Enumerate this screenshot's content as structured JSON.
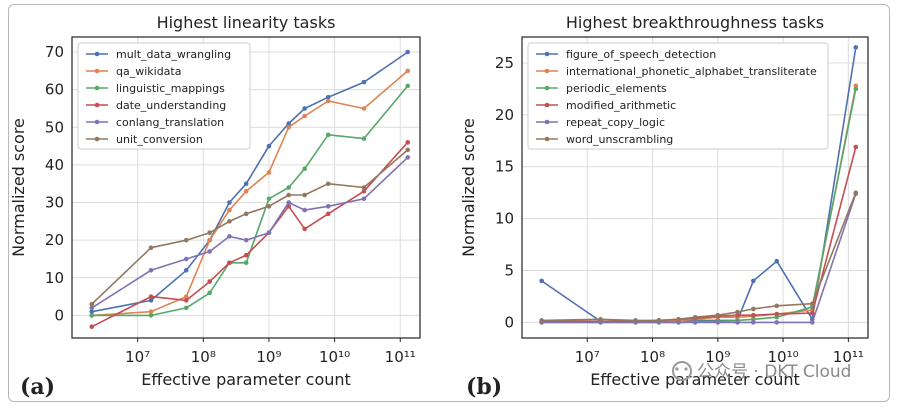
{
  "chart_data": [
    {
      "type": "line",
      "panel_label": "(a)",
      "title": "Highest linearity tasks",
      "xlabel": "Effective parameter count",
      "ylabel": "Normalized score",
      "xscale": "log",
      "xlim": [
        1000000,
        200000000000
      ],
      "ylim": [
        -6,
        74
      ],
      "xticks": [
        7,
        8,
        9,
        10,
        11
      ],
      "yticks": [
        0,
        10,
        20,
        30,
        40,
        50,
        60,
        70
      ],
      "legend_position": "top-left",
      "grid": true,
      "x": [
        2000000,
        16000000,
        55000000,
        125000000,
        250000000,
        450000000,
        1000000000,
        2000000000,
        3500000000,
        8000000000,
        28000000000,
        130000000000
      ],
      "series": [
        {
          "name": "mult_data_wrangling",
          "color": "#4c72b0",
          "values": [
            1,
            4,
            12,
            20,
            30,
            35,
            45,
            51,
            55,
            58,
            62,
            70
          ]
        },
        {
          "name": "qa_wikidata",
          "color": "#dd8452",
          "values": [
            0,
            1,
            5,
            20,
            28,
            33,
            38,
            50,
            53,
            57,
            55,
            65
          ]
        },
        {
          "name": "linguistic_mappings",
          "color": "#55a868",
          "values": [
            0,
            0,
            2,
            6,
            14,
            14,
            31,
            34,
            39,
            48,
            47,
            61
          ]
        },
        {
          "name": "date_understanding",
          "color": "#c44e52",
          "values": [
            -3,
            5,
            4,
            9,
            14,
            16,
            22,
            29,
            23,
            27,
            33,
            46
          ]
        },
        {
          "name": "conlang_translation",
          "color": "#8172b3",
          "values": [
            2,
            12,
            15,
            17,
            21,
            20,
            22,
            30,
            28,
            29,
            31,
            42
          ]
        },
        {
          "name": "unit_conversion",
          "color": "#937860",
          "values": [
            3,
            18,
            20,
            22,
            25,
            27,
            29,
            32,
            32,
            35,
            34,
            44
          ]
        }
      ]
    },
    {
      "type": "line",
      "panel_label": "(b)",
      "title": "Highest breakthroughness tasks",
      "xlabel": "Effective parameter count",
      "ylabel": "Normalized score",
      "xscale": "log",
      "xlim": [
        1000000,
        200000000000
      ],
      "ylim": [
        -1.5,
        27.5
      ],
      "xticks": [
        7,
        8,
        9,
        10,
        11
      ],
      "yticks": [
        0,
        5,
        10,
        15,
        20,
        25
      ],
      "legend_position": "top-left",
      "grid": true,
      "x": [
        2000000,
        16000000,
        55000000,
        125000000,
        250000000,
        450000000,
        1000000000,
        2000000000,
        3500000000,
        8000000000,
        28000000000,
        130000000000
      ],
      "series": [
        {
          "name": "figure_of_speech_detection",
          "color": "#4c72b0",
          "values": [
            4,
            0.1,
            0.1,
            0.1,
            0.2,
            0.2,
            0.2,
            0.2,
            4,
            5.9,
            0.3,
            26.5
          ]
        },
        {
          "name": "international_phonetic_alphabet_transliterate",
          "color": "#dd8452",
          "values": [
            0.1,
            0.1,
            0.1,
            0.2,
            0.2,
            0.3,
            0.5,
            0.5,
            0.6,
            0.8,
            1.2,
            22.8
          ]
        },
        {
          "name": "periodic_elements",
          "color": "#55a868",
          "values": [
            0,
            0,
            0,
            0,
            0,
            0.1,
            0.1,
            0.2,
            0.3,
            0.5,
            1.5,
            22.5
          ]
        },
        {
          "name": "modified_arithmetic",
          "color": "#c44e52",
          "values": [
            0.1,
            0.1,
            0.1,
            0.2,
            0.3,
            0.4,
            0.6,
            0.7,
            0.7,
            0.8,
            0.9,
            16.9
          ]
        },
        {
          "name": "repeat_copy_logic",
          "color": "#8172b3",
          "values": [
            0,
            0,
            0,
            0,
            0,
            0,
            0,
            0,
            0,
            0,
            0,
            12.4
          ]
        },
        {
          "name": "word_unscrambling",
          "color": "#937860",
          "values": [
            0.2,
            0.3,
            0.2,
            0.2,
            0.3,
            0.5,
            0.7,
            1.0,
            1.3,
            1.6,
            1.8,
            12.5
          ]
        }
      ]
    }
  ],
  "watermark": "公众号 · DKT Cloud"
}
